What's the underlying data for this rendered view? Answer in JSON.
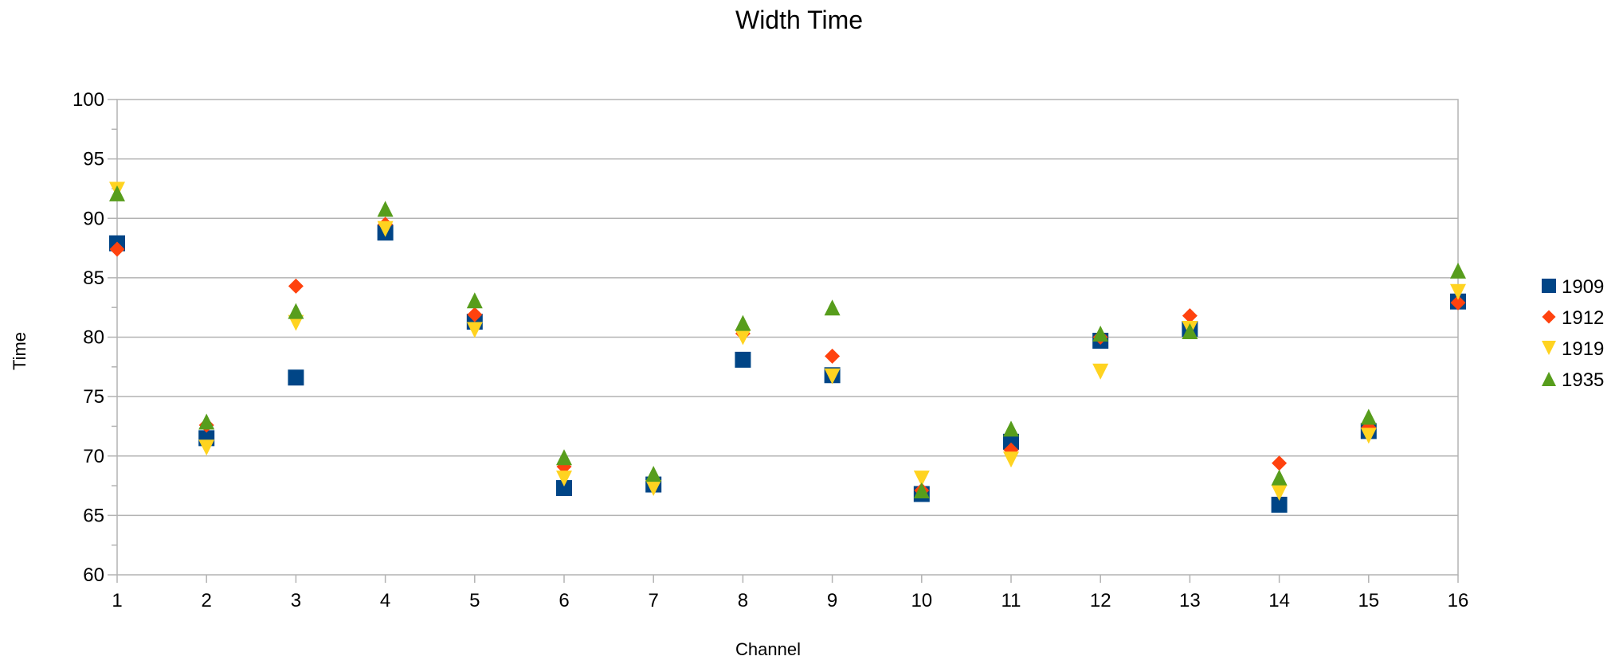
{
  "chart_data": {
    "type": "scatter",
    "title": "Width Time",
    "xlabel": "Channel",
    "ylabel": "Time",
    "xlim": [
      1,
      16
    ],
    "ylim": [
      60,
      100
    ],
    "y_major_step": 5,
    "y_minor_step": 2.5,
    "grid": "horizontal-major",
    "legend": "right",
    "x_ticks": [
      "1",
      "2",
      "3",
      "4",
      "5",
      "6",
      "7",
      "8",
      "9",
      "10",
      "11",
      "12",
      "13",
      "14",
      "15",
      "16"
    ],
    "y_ticks": [
      "60",
      "65",
      "70",
      "75",
      "80",
      "85",
      "90",
      "95",
      "100"
    ],
    "x": [
      1,
      2,
      3,
      4,
      5,
      6,
      7,
      8,
      9,
      10,
      11,
      12,
      13,
      14,
      15,
      16
    ],
    "series": [
      {
        "name": "1909",
        "marker": "square",
        "color": "#004586",
        "values": [
          87.9,
          71.5,
          76.6,
          88.8,
          81.3,
          67.3,
          67.6,
          78.1,
          76.8,
          66.8,
          71.2,
          79.7,
          80.7,
          65.9,
          72.1,
          83.0
        ]
      },
      {
        "name": "1912",
        "marker": "diamond",
        "color": "#ff420e",
        "values": [
          87.4,
          72.6,
          84.3,
          89.5,
          81.9,
          69.1,
          67.9,
          80.3,
          78.4,
          67.1,
          70.5,
          80.0,
          81.8,
          69.4,
          72.4,
          82.9
        ]
      },
      {
        "name": "1919",
        "marker": "triangle-down",
        "color": "#ffd320",
        "values": [
          92.4,
          70.7,
          81.2,
          89.1,
          80.6,
          68.1,
          67.3,
          80.0,
          76.7,
          68.1,
          69.7,
          77.1,
          80.7,
          66.9,
          71.7,
          83.8
        ]
      },
      {
        "name": "1935",
        "marker": "triangle-up",
        "color": "#579d1c",
        "values": [
          92.1,
          72.9,
          82.2,
          90.8,
          83.1,
          69.9,
          68.5,
          81.2,
          82.5,
          67.1,
          72.3,
          80.3,
          80.5,
          68.2,
          73.3,
          85.6
        ]
      }
    ]
  }
}
